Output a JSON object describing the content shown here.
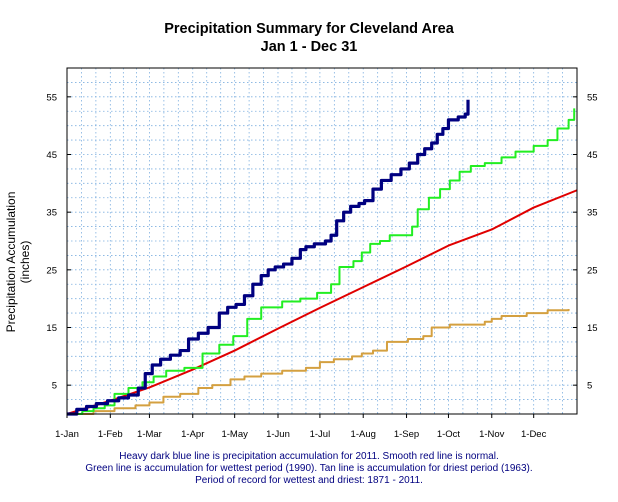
{
  "chart_data": {
    "type": "line",
    "title": "Precipitation Summary for Cleveland Area",
    "subtitle": "Jan 1 - Dec 31",
    "ylabel": "Precipitation Accumulation (inches)",
    "xlabel": "",
    "x_ticks": [
      "1-Jan",
      "1-Feb",
      "1-Mar",
      "1-Apr",
      "1-May",
      "1-Jun",
      "1-Jul",
      "1-Aug",
      "1-Sep",
      "1-Oct",
      "1-Nov",
      "1-Dec"
    ],
    "x_tick_days": [
      1,
      32,
      60,
      91,
      121,
      152,
      182,
      213,
      244,
      274,
      305,
      335
    ],
    "xlim": [
      1,
      366
    ],
    "y_ticks": [
      5,
      15,
      25,
      35,
      45,
      55
    ],
    "ylim": [
      0,
      60
    ],
    "grid": true,
    "series": [
      {
        "color": "#000080",
        "style": "step",
        "width": 3.2,
        "points": [
          [
            1,
            0
          ],
          [
            8,
            0.8
          ],
          [
            15,
            1.3
          ],
          [
            22,
            1.8
          ],
          [
            30,
            2.3
          ],
          [
            38,
            2.8
          ],
          [
            45,
            3.3
          ],
          [
            52,
            4.5
          ],
          [
            57,
            7
          ],
          [
            62,
            8.5
          ],
          [
            68,
            9.5
          ],
          [
            75,
            10.2
          ],
          [
            82,
            11
          ],
          [
            88,
            13
          ],
          [
            95,
            14
          ],
          [
            102,
            15
          ],
          [
            110,
            17.5
          ],
          [
            116,
            18.5
          ],
          [
            122,
            19
          ],
          [
            128,
            20.5
          ],
          [
            134,
            22.5
          ],
          [
            140,
            24
          ],
          [
            145,
            25
          ],
          [
            150,
            25.5
          ],
          [
            156,
            26
          ],
          [
            162,
            27
          ],
          [
            168,
            28.5
          ],
          [
            172,
            29
          ],
          [
            178,
            29.5
          ],
          [
            186,
            30
          ],
          [
            190,
            31
          ],
          [
            194,
            33.5
          ],
          [
            199,
            35
          ],
          [
            204,
            36
          ],
          [
            210,
            36.5
          ],
          [
            214,
            37
          ],
          [
            220,
            39
          ],
          [
            226,
            40.5
          ],
          [
            233,
            41.5
          ],
          [
            240,
            42.5
          ],
          [
            246,
            43.5
          ],
          [
            252,
            45
          ],
          [
            257,
            46
          ],
          [
            262,
            47
          ],
          [
            266,
            48.5
          ],
          [
            270,
            49.5
          ],
          [
            274,
            51
          ],
          [
            281,
            51.5
          ],
          [
            286,
            52
          ],
          [
            288,
            54.5
          ]
        ]
      },
      {
        "color": "#22ee22",
        "style": "step",
        "width": 2,
        "points": [
          [
            1,
            0
          ],
          [
            12,
            0.5
          ],
          [
            20,
            1
          ],
          [
            28,
            1.5
          ],
          [
            35,
            3.5
          ],
          [
            45,
            4.5
          ],
          [
            55,
            5.5
          ],
          [
            63,
            6.5
          ],
          [
            72,
            7.5
          ],
          [
            85,
            8
          ],
          [
            98,
            10.5
          ],
          [
            110,
            12
          ],
          [
            120,
            13.5
          ],
          [
            130,
            16.5
          ],
          [
            140,
            18.5
          ],
          [
            155,
            19.5
          ],
          [
            168,
            20
          ],
          [
            180,
            21
          ],
          [
            190,
            22.5
          ],
          [
            196,
            25.5
          ],
          [
            206,
            26.5
          ],
          [
            212,
            28
          ],
          [
            218,
            29.5
          ],
          [
            225,
            30
          ],
          [
            232,
            31
          ],
          [
            248,
            32.5
          ],
          [
            252,
            35.5
          ],
          [
            260,
            37.5
          ],
          [
            268,
            39
          ],
          [
            275,
            40.5
          ],
          [
            282,
            42
          ],
          [
            290,
            43
          ],
          [
            300,
            43.5
          ],
          [
            312,
            44.5
          ],
          [
            322,
            45.5
          ],
          [
            335,
            46.5
          ],
          [
            345,
            47.5
          ],
          [
            352,
            49.5
          ],
          [
            360,
            51
          ],
          [
            364,
            53
          ]
        ]
      },
      {
        "color": "#e00000",
        "style": "smooth",
        "width": 2,
        "points": [
          [
            1,
            0
          ],
          [
            32,
            2.3
          ],
          [
            60,
            4.6
          ],
          [
            91,
            7.7
          ],
          [
            121,
            11
          ],
          [
            152,
            14.8
          ],
          [
            182,
            18.4
          ],
          [
            213,
            22
          ],
          [
            244,
            25.6
          ],
          [
            274,
            29.2
          ],
          [
            305,
            32
          ],
          [
            335,
            35.8
          ],
          [
            366,
            38.8
          ]
        ]
      },
      {
        "color": "#d4a040",
        "style": "step",
        "width": 2,
        "points": [
          [
            1,
            0
          ],
          [
            20,
            0.5
          ],
          [
            35,
            1
          ],
          [
            50,
            1.5
          ],
          [
            60,
            2
          ],
          [
            70,
            3
          ],
          [
            82,
            3.5
          ],
          [
            95,
            4.5
          ],
          [
            105,
            5
          ],
          [
            118,
            6
          ],
          [
            128,
            6.5
          ],
          [
            140,
            7
          ],
          [
            155,
            7.5
          ],
          [
            172,
            8
          ],
          [
            182,
            9
          ],
          [
            192,
            9.5
          ],
          [
            205,
            10
          ],
          [
            212,
            10.5
          ],
          [
            220,
            11
          ],
          [
            230,
            12.5
          ],
          [
            245,
            13
          ],
          [
            256,
            13.5
          ],
          [
            262,
            15
          ],
          [
            275,
            15.5
          ],
          [
            300,
            16
          ],
          [
            305,
            16.5
          ],
          [
            312,
            17
          ],
          [
            330,
            17.5
          ],
          [
            345,
            18
          ],
          [
            360,
            18.2
          ]
        ]
      }
    ]
  },
  "notes": {
    "line1": "Heavy dark blue line is precipitation accumulation for 2011. Smooth red line is normal.",
    "line2": "Green line is accumulation for wettest period (1990).   Tan line is accumulation for driest period (1963).",
    "line3": "Period of record for wettest and driest: 1871 - 2011."
  }
}
